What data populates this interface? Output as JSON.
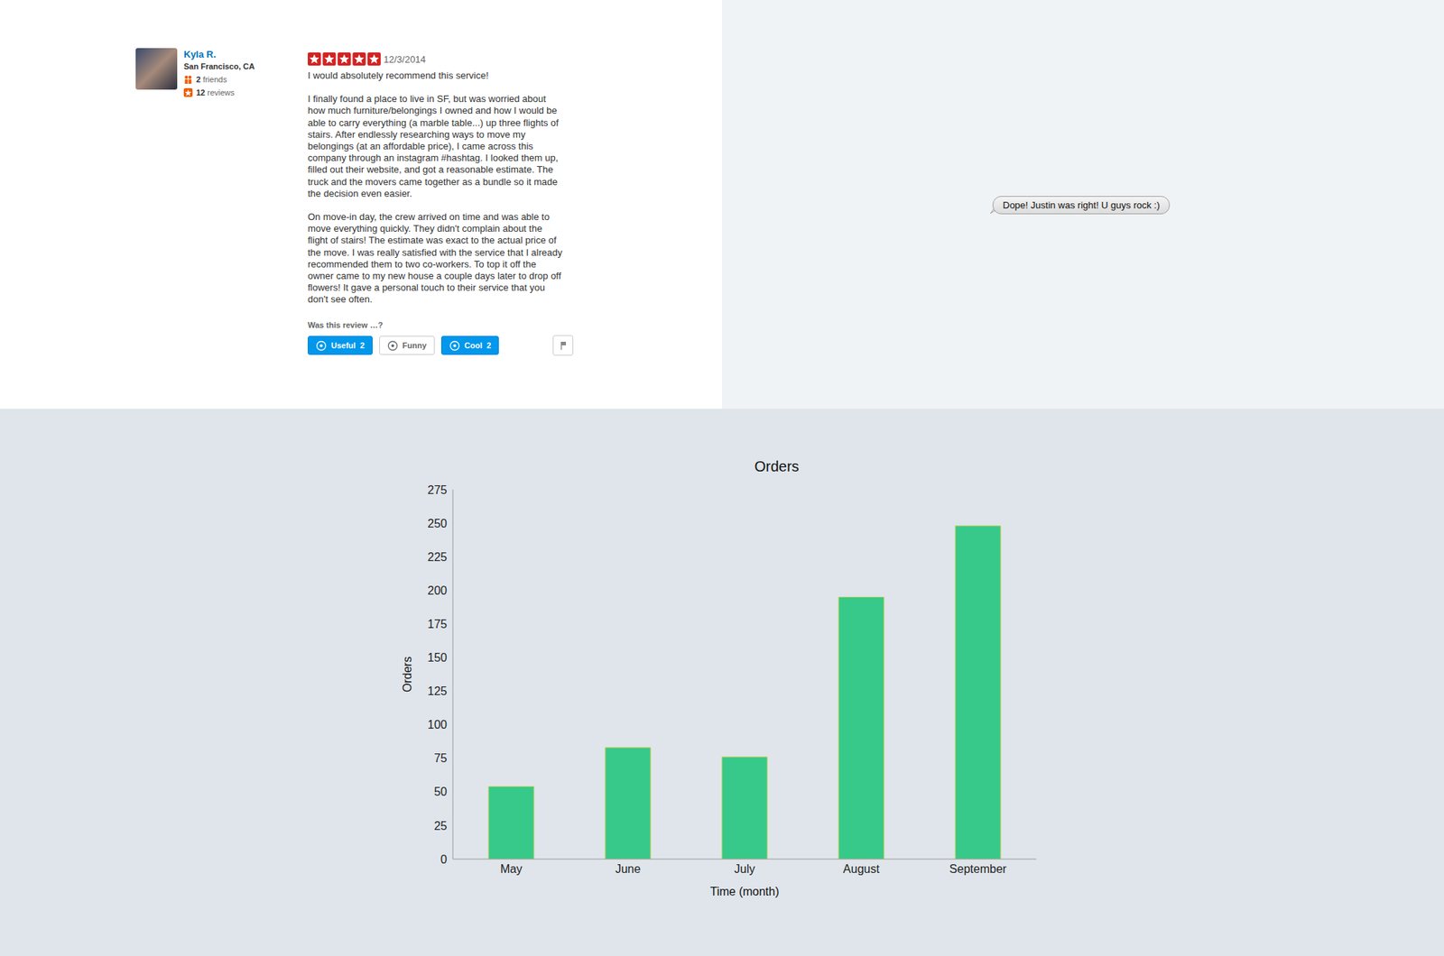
{
  "review": {
    "user": {
      "name": "Kyla R.",
      "location": "San Francisco, CA",
      "friends": 2,
      "friends_label": "friends",
      "reviews": 12,
      "reviews_label": "reviews"
    },
    "rating": 5,
    "date": "12/3/2014",
    "paragraphs": [
      "I would absolutely recommend this service!",
      "I finally found a place to live in SF, but was worried about how much furniture/belongings I owned and how I would be able to carry everything (a marble table...) up three flights of stairs. After endlessly researching ways to move my belongings (at an affordable price), I came across this company through an instagram #hashtag. I looked them up, filled out their website, and got a reasonable estimate. The truck and the movers came together as a bundle so it made the decision even easier.",
      "On move-in day, the crew arrived on time and was able to move everything quickly. They didn't complain about the flight of stairs! The estimate was exact to the actual price of the move. I was really satisfied with the service that I already recommended them to two co-workers. To top it off the owner came to my new house a couple days later to drop off flowers! It gave a personal touch to their service that you don't see often."
    ],
    "vote_prompt": "Was this review …?",
    "votes": [
      {
        "label": "Useful",
        "count": 2
      },
      {
        "label": "Funny"
      },
      {
        "label": "Cool",
        "count": 2
      }
    ]
  },
  "message": "Dope! Justin was right! U guys rock :)",
  "chart_data": {
    "type": "bar",
    "title": "Orders",
    "x_label": "Time (month)",
    "y_label": "Orders",
    "categories": [
      "May",
      "June",
      "July",
      "August",
      "September"
    ],
    "values": [
      54,
      83,
      76,
      195,
      248
    ],
    "color": "#36c98a",
    "ylim": [
      0,
      275
    ],
    "yticks": [
      0,
      25,
      50,
      75,
      100,
      125,
      150,
      175,
      200,
      225,
      250,
      275
    ],
    "grid": false
  }
}
